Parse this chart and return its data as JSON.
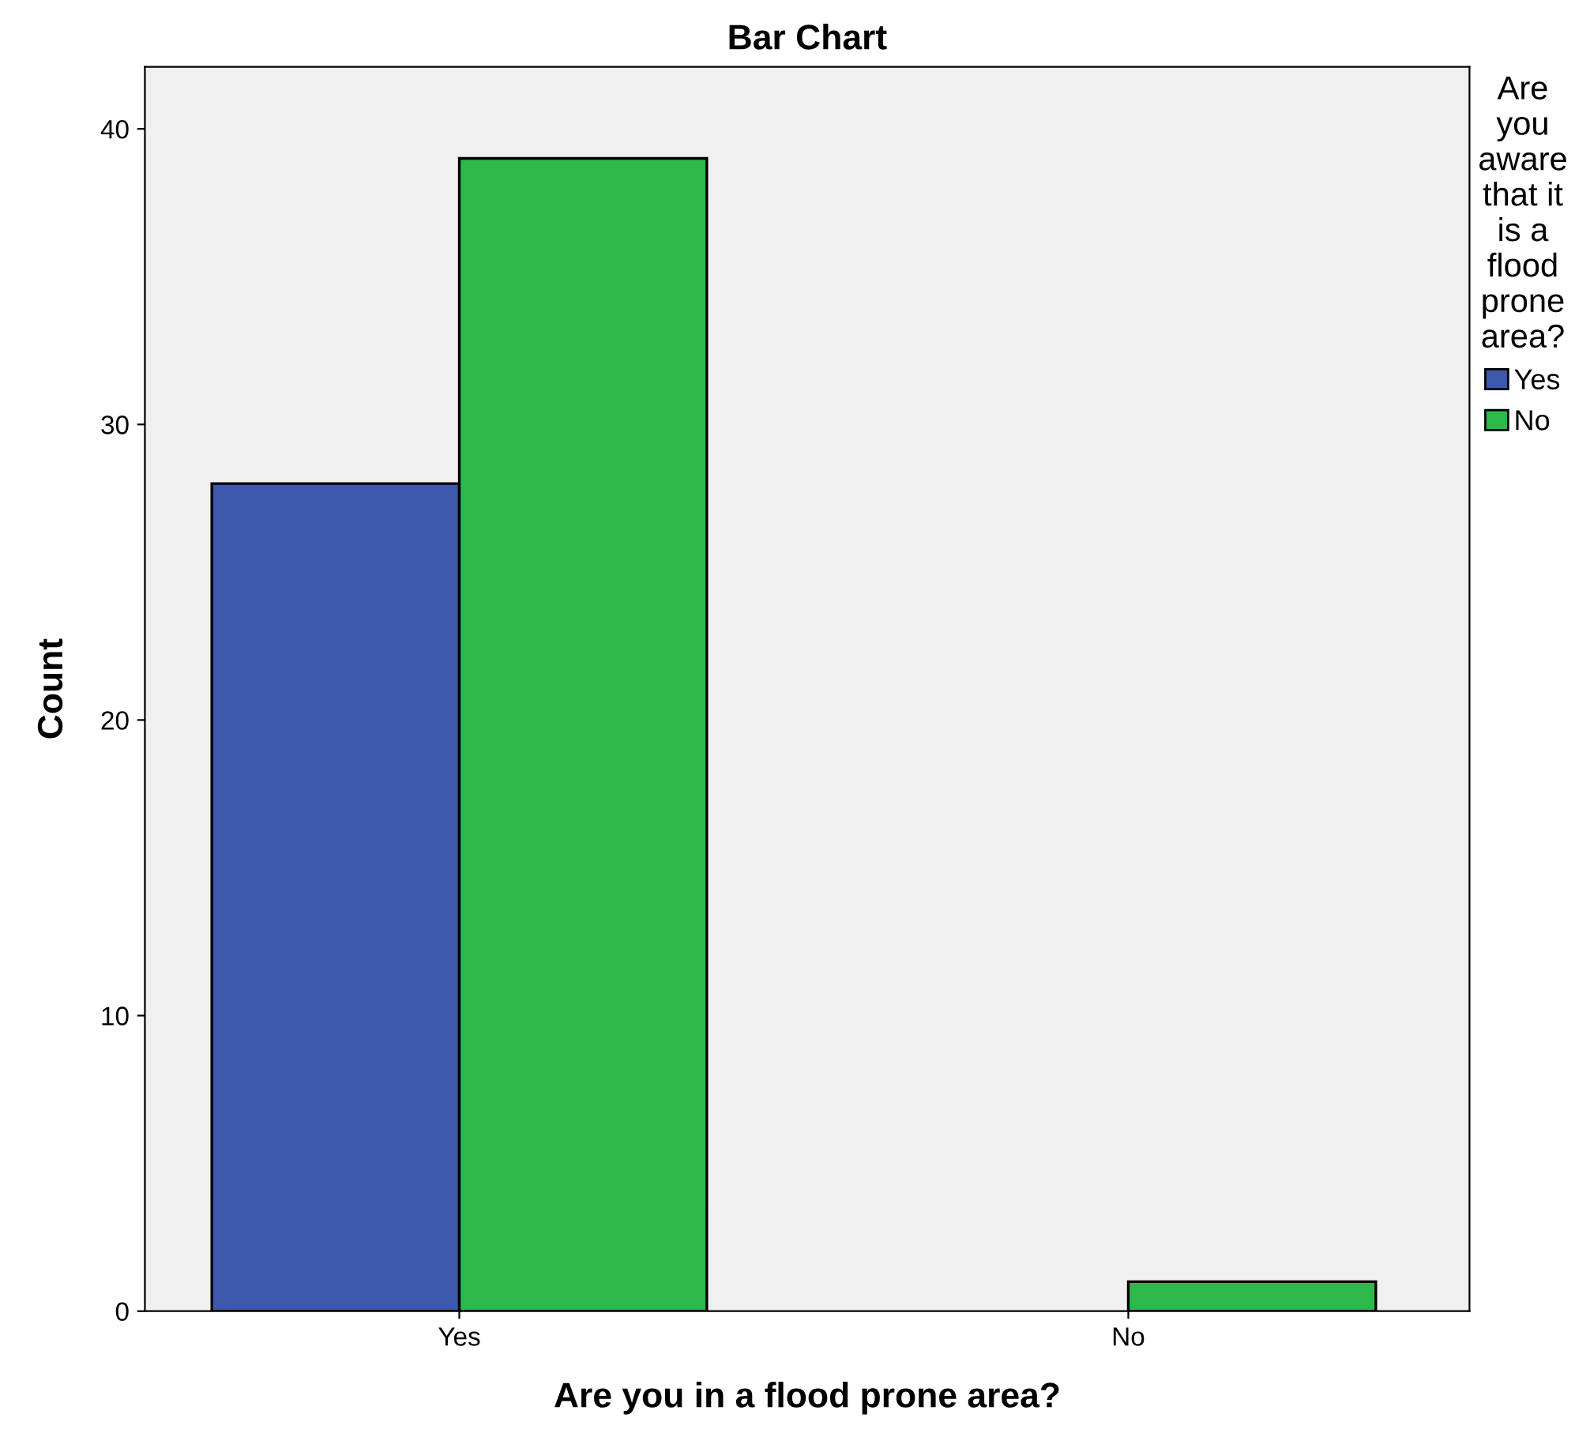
{
  "chart_data": {
    "type": "bar",
    "title": "Bar Chart",
    "xlabel": "Are you in a flood prone area?",
    "ylabel": "Count",
    "legend_title": "Are\nyou\naware\nthat it\nis a\nflood\nprone\narea?",
    "categories": [
      "Yes",
      "No"
    ],
    "series": [
      {
        "name": "Yes",
        "color": "#3e58ac",
        "values": [
          28,
          0
        ]
      },
      {
        "name": "No",
        "color": "#2eb84b",
        "values": [
          39,
          1
        ]
      }
    ],
    "ylim": [
      0,
      42.1
    ],
    "yticks": [
      0,
      10,
      20,
      30,
      40
    ],
    "grid": false,
    "legend": "top right"
  }
}
